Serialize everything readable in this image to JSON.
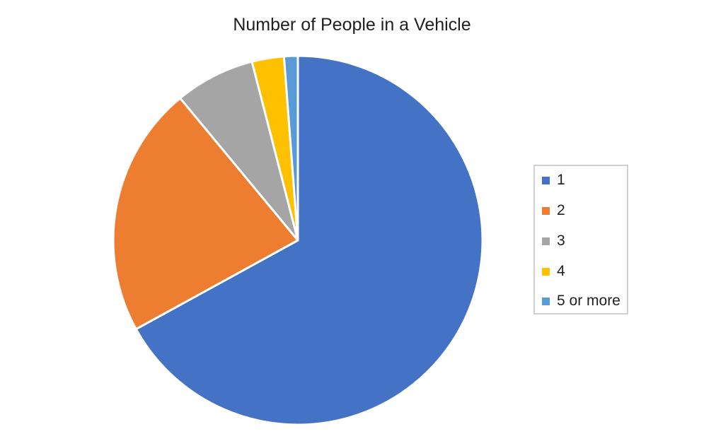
{
  "chart_data": {
    "type": "pie",
    "title": "Number of People in a Vehicle",
    "categories": [
      "1",
      "2",
      "3",
      "4",
      "5 or more"
    ],
    "values": [
      67,
      22,
      7,
      2.8,
      1.2
    ],
    "colors": [
      "#4472C4",
      "#ED7D31",
      "#A5A5A5",
      "#FFC000",
      "#5B9BD5"
    ],
    "legend_position": "right",
    "start_angle": "12 o'clock",
    "direction": "clockwise"
  }
}
